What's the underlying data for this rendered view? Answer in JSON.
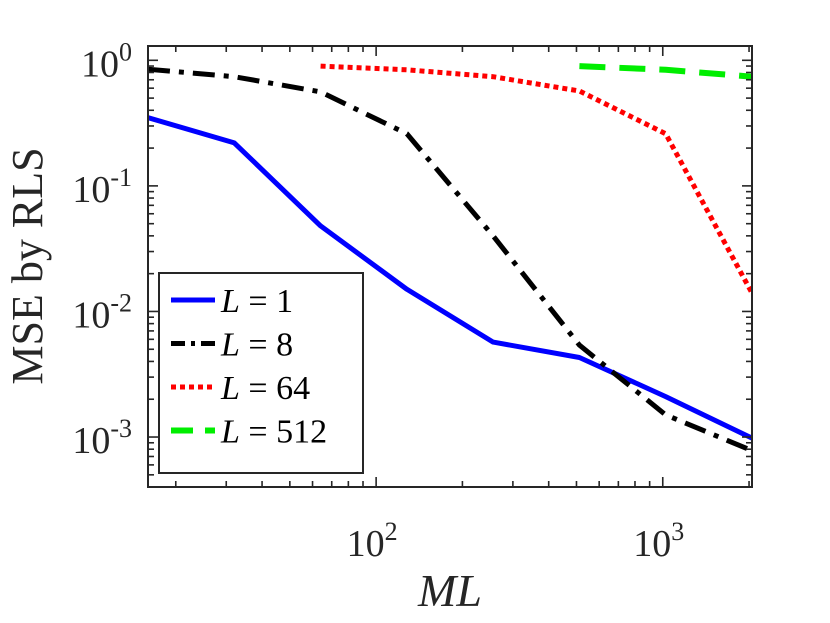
{
  "chart_data": {
    "type": "line",
    "title": "",
    "xlabel": "ML",
    "ylabel": "MSE by RLS",
    "xscale": "log",
    "yscale": "log",
    "xlim": [
      16,
      2048
    ],
    "ylim": [
      0.0004,
      1.3
    ],
    "x_ticks": [
      {
        "value": 100,
        "base": "10",
        "exp": "2"
      },
      {
        "value": 1000,
        "base": "10",
        "exp": "3"
      }
    ],
    "y_ticks": [
      {
        "value": 1,
        "base": "10",
        "exp": "0"
      },
      {
        "value": 0.1,
        "base": "10",
        "exp": "-1"
      },
      {
        "value": 0.01,
        "base": "10",
        "exp": "-2"
      },
      {
        "value": 0.001,
        "base": "10",
        "exp": "-3"
      }
    ],
    "legend_position": "bottom-left",
    "series": [
      {
        "name": "L = 1",
        "legend_var": "L",
        "legend_eq": " = ",
        "legend_val": "1",
        "color": "#0000ff",
        "dash": "solid",
        "x": [
          16,
          32,
          64,
          128,
          256,
          512,
          1024,
          2048
        ],
        "y": [
          0.35,
          0.22,
          0.048,
          0.015,
          0.0057,
          0.0043,
          0.0021,
          0.00098
        ]
      },
      {
        "name": "L = 8",
        "legend_var": "L",
        "legend_eq": " = ",
        "legend_val": "8",
        "color": "#000000",
        "dash": "dashdot",
        "x": [
          16,
          32,
          64,
          128,
          256,
          512,
          1024,
          2048
        ],
        "y": [
          0.85,
          0.74,
          0.56,
          0.26,
          0.04,
          0.0054,
          0.0015,
          0.00078
        ]
      },
      {
        "name": "L = 64",
        "legend_var": "L",
        "legend_eq": " = ",
        "legend_val": "64",
        "color": "#ff0000",
        "dash": "dotted",
        "x": [
          64,
          128,
          256,
          512,
          1024,
          2048
        ],
        "y": [
          0.9,
          0.84,
          0.74,
          0.57,
          0.26,
          0.014
        ]
      },
      {
        "name": "L = 512",
        "legend_var": "L",
        "legend_eq": " = ",
        "legend_val": "512",
        "color": "#00ee00",
        "dash": "dashed",
        "x": [
          512,
          1024,
          2048
        ],
        "y": [
          0.9,
          0.84,
          0.74
        ]
      }
    ]
  }
}
